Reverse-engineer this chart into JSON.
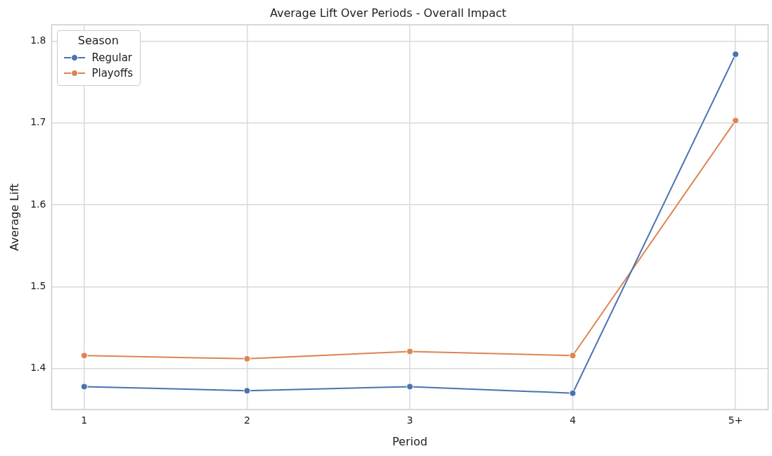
{
  "chart_data": {
    "type": "line",
    "title": "Average Lift Over Periods - Overall Impact",
    "xlabel": "Period",
    "ylabel": "Average Lift",
    "legend_title": "Season",
    "categories": [
      "1",
      "2",
      "3",
      "4",
      "5+"
    ],
    "series": [
      {
        "name": "Regular",
        "color": "#4c72b0",
        "values": [
          1.378,
          1.373,
          1.378,
          1.37,
          1.784
        ]
      },
      {
        "name": "Playoffs",
        "color": "#dd8452",
        "values": [
          1.416,
          1.412,
          1.421,
          1.416,
          1.703
        ]
      }
    ],
    "ylim": [
      1.35,
      1.82
    ],
    "yticks": [
      1.4,
      1.5,
      1.6,
      1.7,
      1.8
    ],
    "grid": true,
    "legend": "top left",
    "marker": "circle",
    "line_style": "solid"
  }
}
